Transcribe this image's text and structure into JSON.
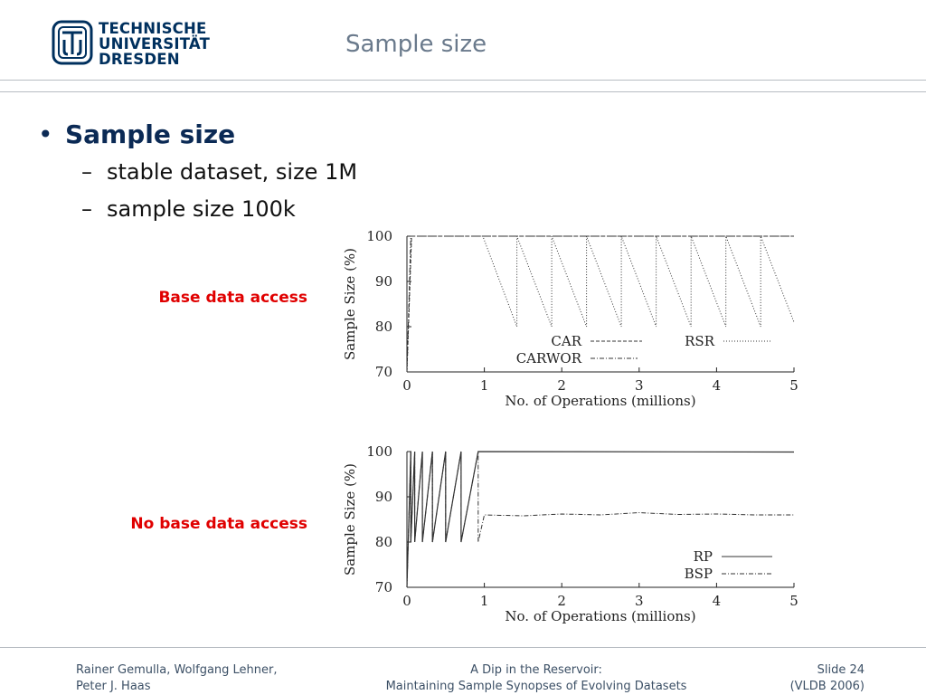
{
  "header": {
    "logo_lines": [
      "TECHNISCHE",
      "UNIVERSITÄT",
      "DRESDEN"
    ],
    "title": "Sample size"
  },
  "content": {
    "bullet": "Sample size",
    "subpoints": [
      "stable dataset, size 1M",
      "sample size 100k"
    ]
  },
  "chart_data": [
    {
      "type": "line",
      "label": "Base data access",
      "xlabel": "No. of Operations (millions)",
      "ylabel": "Sample Size (%)",
      "xlim": [
        0,
        5
      ],
      "ylim": [
        70,
        100
      ],
      "xticks": [
        "0",
        "1",
        "2",
        "3",
        "4",
        "5"
      ],
      "yticks": [
        "70",
        "80",
        "90",
        "100"
      ],
      "legend_position": "bottom-center",
      "series": [
        {
          "name": "CAR",
          "style": "dashed",
          "x": [
            0,
            0.06,
            5
          ],
          "y": [
            70,
            100,
            100
          ]
        },
        {
          "name": "RSR",
          "style": "dotted",
          "x": [
            0,
            0.06,
            0.98,
            1.42,
            1.42,
            1.87,
            1.87,
            2.32,
            2.32,
            2.77,
            2.77,
            3.22,
            3.22,
            3.67,
            3.67,
            4.12,
            4.12,
            4.57,
            4.57,
            5.0
          ],
          "y": [
            70,
            100,
            100,
            80,
            100,
            80,
            100,
            80,
            100,
            80,
            100,
            80,
            100,
            80,
            100,
            80,
            100,
            80,
            100,
            81
          ]
        },
        {
          "name": "CARWOR",
          "style": "dash-dot",
          "x": [
            0,
            0.05,
            5
          ],
          "y": [
            70,
            100,
            100
          ]
        }
      ]
    },
    {
      "type": "line",
      "label": "No base data access",
      "xlabel": "No. of Operations (millions)",
      "ylabel": "Sample Size (%)",
      "xlim": [
        0,
        5
      ],
      "ylim": [
        70,
        100
      ],
      "xticks": [
        "0",
        "1",
        "2",
        "3",
        "4",
        "5"
      ],
      "yticks": [
        "70",
        "80",
        "90",
        "100"
      ],
      "legend_position": "bottom-right",
      "series": [
        {
          "name": "RP",
          "style": "solid",
          "x": [
            0,
            0.05,
            0.05,
            0.1,
            0.1,
            0.2,
            0.2,
            0.33,
            0.33,
            0.5,
            0.5,
            0.7,
            0.7,
            0.92,
            0.92,
            5.0
          ],
          "y": [
            70,
            100,
            80,
            100,
            80,
            100,
            80,
            100,
            80,
            100,
            80,
            100,
            80,
            100,
            100,
            99.9
          ]
        },
        {
          "name": "BSP",
          "style": "dash-dot",
          "x": [
            0,
            0.05,
            0.05,
            0.1,
            0.1,
            0.2,
            0.2,
            0.33,
            0.33,
            0.5,
            0.5,
            0.7,
            0.7,
            0.92,
            0.92,
            1.0,
            1.5,
            2.0,
            2.5,
            3.0,
            3.5,
            4.0,
            4.5,
            5.0
          ],
          "y": [
            70,
            100,
            80,
            100,
            80,
            100,
            80,
            100,
            80,
            100,
            80,
            100,
            80,
            100,
            80,
            86,
            85.8,
            86.2,
            86.0,
            86.5,
            86.1,
            86.2,
            86.0,
            86.0
          ]
        }
      ]
    }
  ],
  "footer": {
    "authors": [
      "Rainer Gemulla, Wolfgang Lehner,",
      "Peter J. Haas"
    ],
    "talk": [
      "A Dip in the Reservoir:",
      "Maintaining Sample Synopses of Evolving Datasets"
    ],
    "slide": [
      "Slide 24",
      "(VLDB 2006)"
    ]
  }
}
